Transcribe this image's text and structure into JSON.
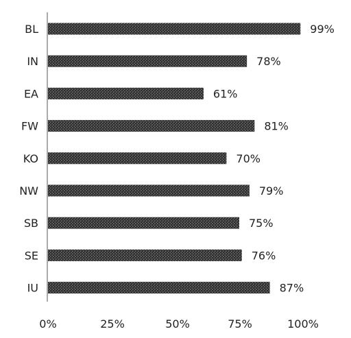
{
  "chart_data": {
    "type": "bar",
    "orientation": "horizontal",
    "categories": [
      "BL",
      "IN",
      "EA",
      "FW",
      "KO",
      "NW",
      "SB",
      "SE",
      "IU"
    ],
    "values": [
      99,
      78,
      61,
      81,
      70,
      79,
      75,
      76,
      87
    ],
    "data_labels": [
      "99%",
      "78%",
      "61%",
      "81%",
      "70%",
      "79%",
      "75%",
      "76%",
      "87%"
    ],
    "x_ticks": [
      "0%",
      "25%",
      "50%",
      "75%",
      "100%"
    ],
    "xlim": [
      0,
      100
    ],
    "title": "",
    "xlabel": "",
    "ylabel": "",
    "grid": false,
    "legend": "none",
    "bar_color": "#3a3a3a"
  }
}
